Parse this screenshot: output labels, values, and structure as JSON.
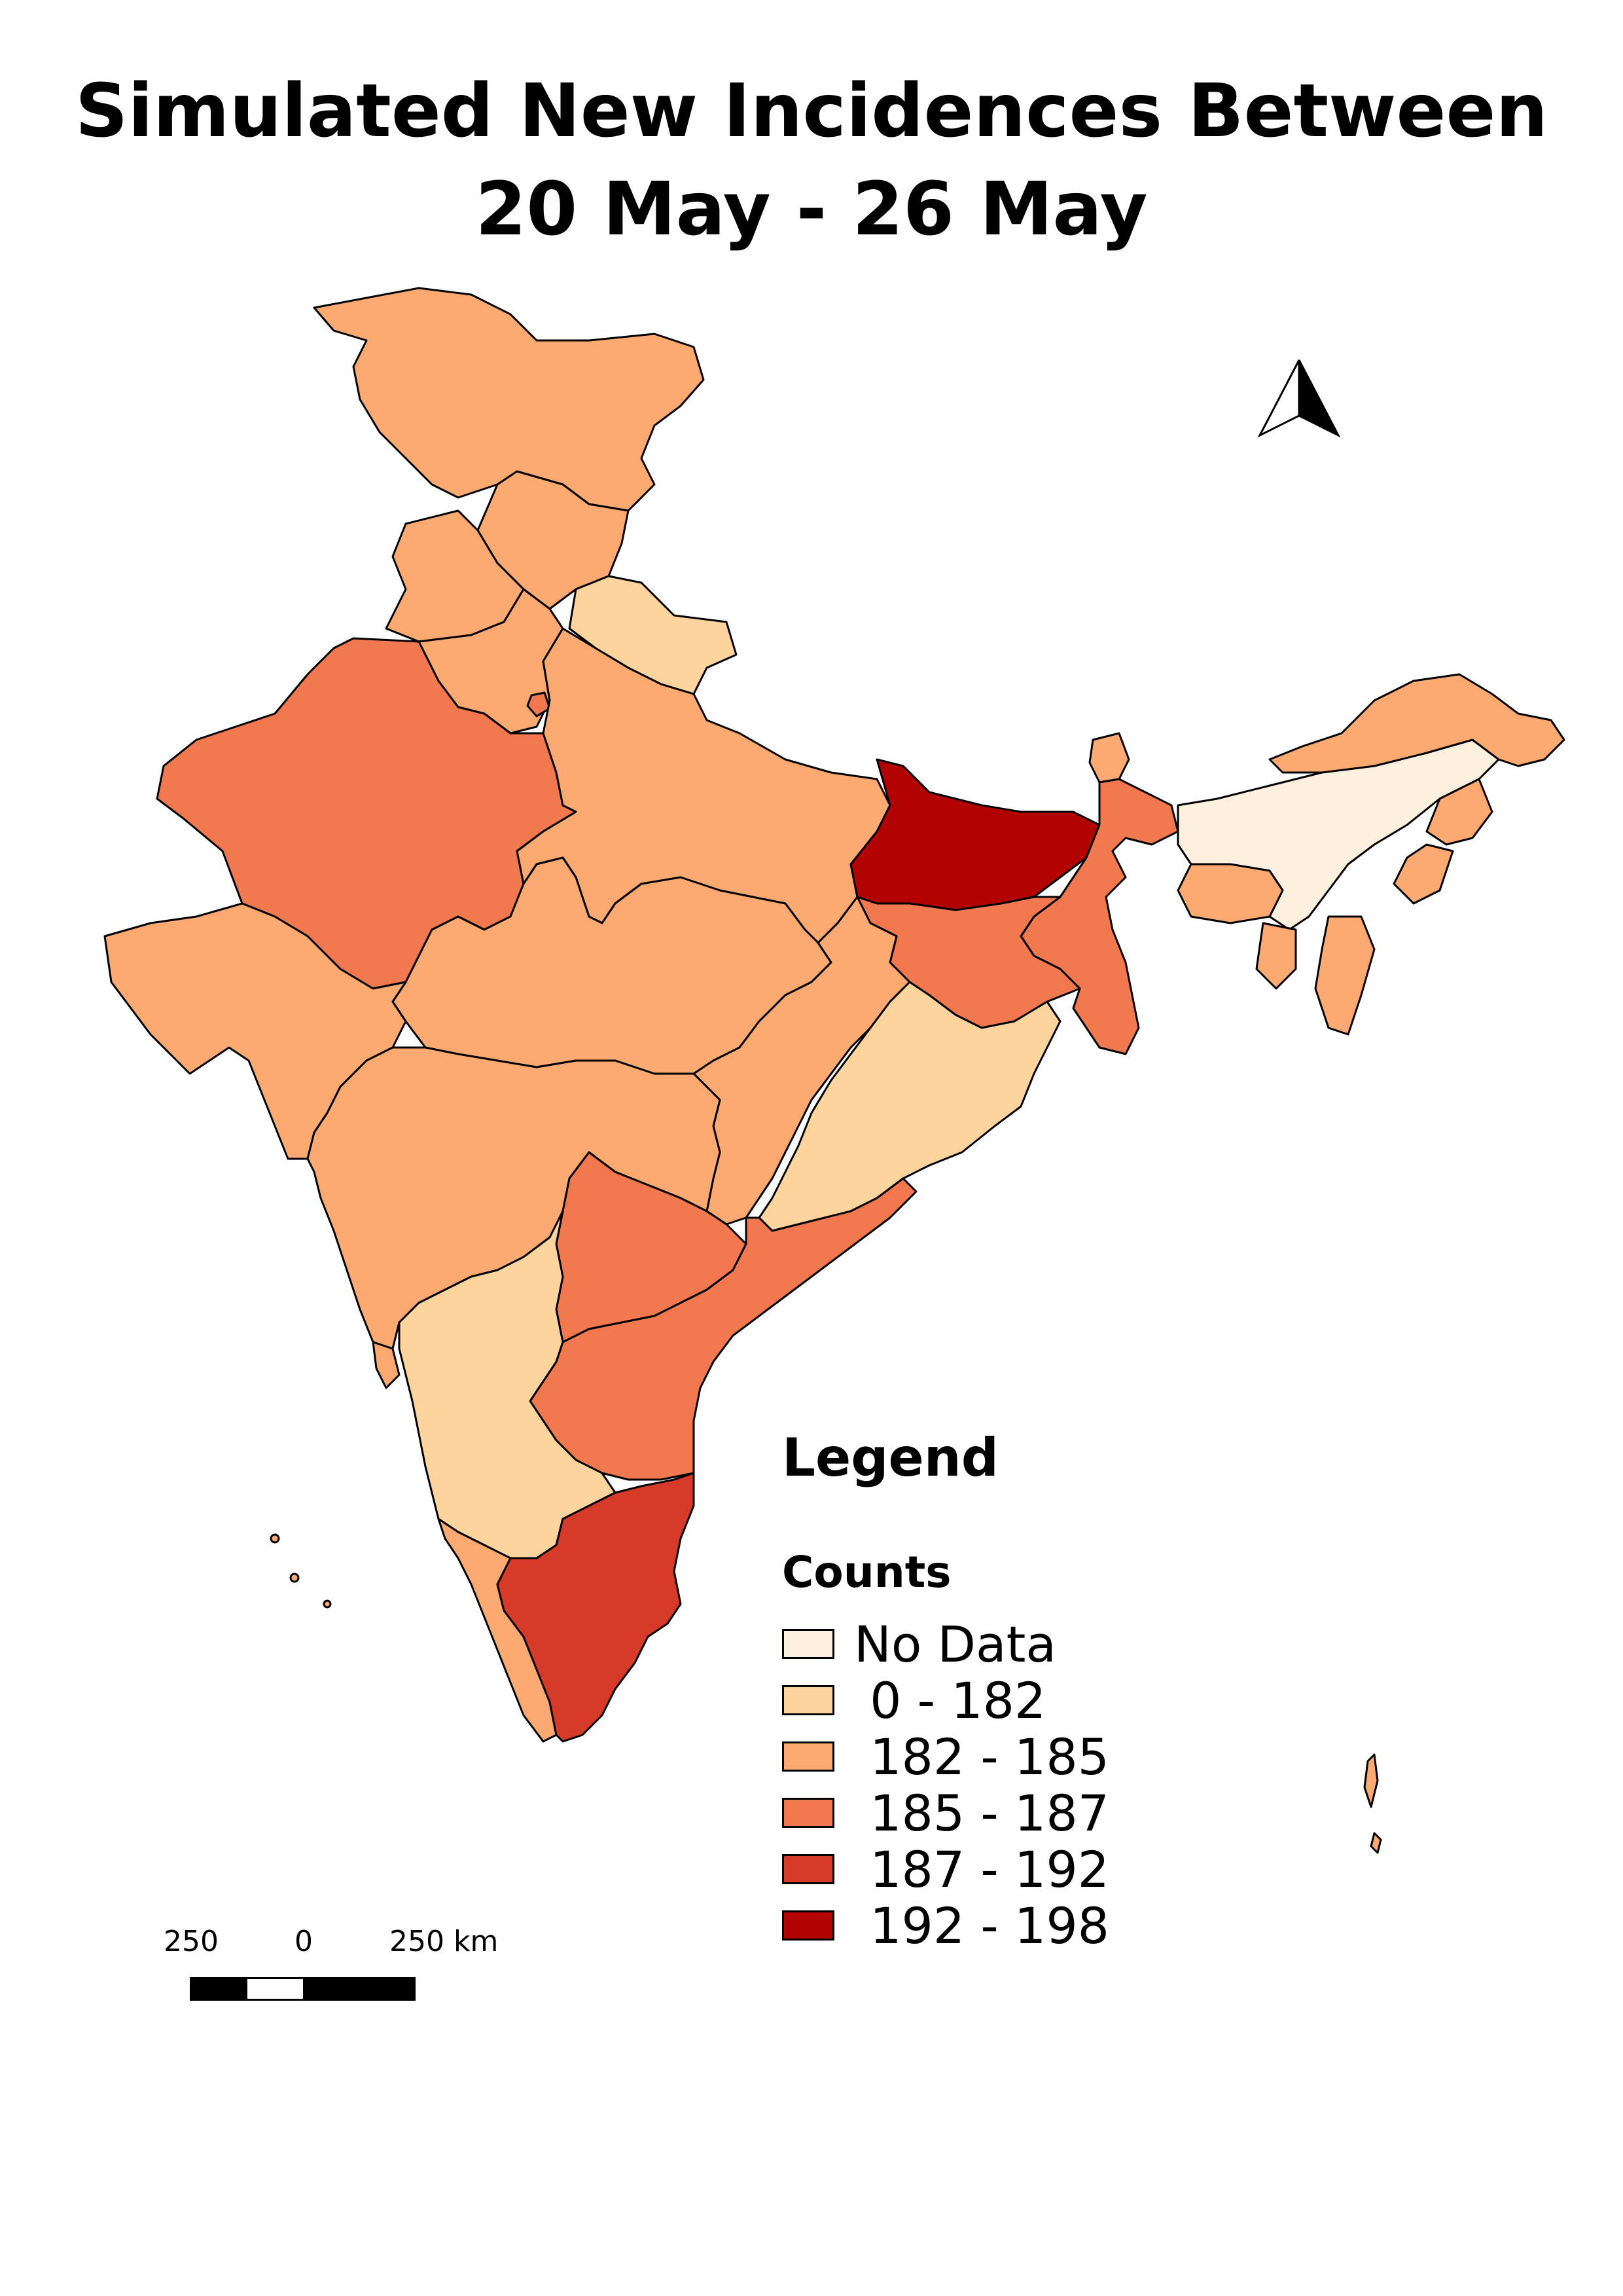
{
  "title_line1": "Simulated New Incidences Between",
  "title_line2": "20 May - 26 May",
  "legend": {
    "heading": "Legend",
    "subheading": "Counts",
    "items": [
      {
        "label": "No Data",
        "color": "#fef0de"
      },
      {
        "label": " 0 - 182",
        "color": "#fdd49e"
      },
      {
        "label": " 182 - 185",
        "color": "#fca972"
      },
      {
        "label": " 185 - 187",
        "color": "#f1784f"
      },
      {
        "label": " 187 - 192",
        "color": "#d63b2a"
      },
      {
        "label": " 192 - 198",
        "color": "#b20202"
      }
    ]
  },
  "scale_bar": {
    "label_left": "250",
    "label_mid": "0",
    "label_right": "250 km"
  },
  "colors": {
    "border": "#000000",
    "background": "#ffffff"
  },
  "icons": {
    "north_arrow": "north-arrow-icon"
  }
}
